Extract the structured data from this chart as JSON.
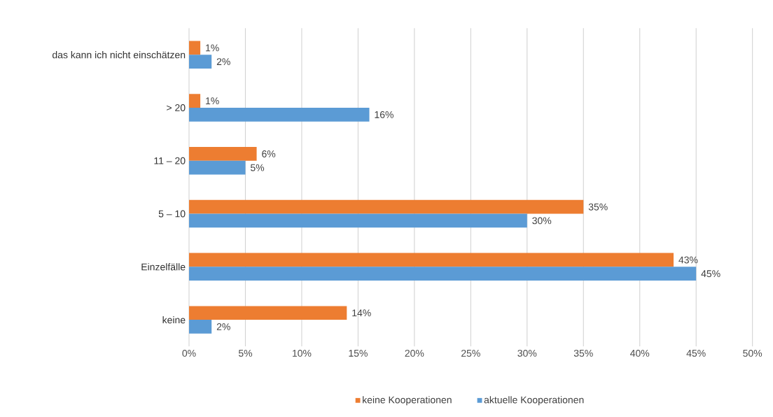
{
  "chart_data": {
    "type": "bar",
    "orientation": "horizontal",
    "categories": [
      "das kann ich nicht einschätzen",
      "> 20",
      "11 – 20",
      "5 – 10",
      "Einzelfälle",
      "keine"
    ],
    "series": [
      {
        "name": "keine Kooperationen",
        "color": "#ed7d31",
        "values": [
          1,
          1,
          6,
          35,
          43,
          14
        ],
        "value_labels": [
          "1%",
          "1%",
          "6%",
          "35%",
          "43%",
          "14%"
        ]
      },
      {
        "name": "aktuelle Kooperationen",
        "color": "#5b9bd5",
        "values": [
          2,
          16,
          5,
          30,
          45,
          2
        ],
        "value_labels": [
          "2%",
          "16%",
          "5%",
          "30%",
          "45%",
          "2%"
        ]
      }
    ],
    "xlim": [
      0,
      50
    ],
    "xticks": [
      {
        "value": 0,
        "label": "0%"
      },
      {
        "value": 5,
        "label": "5%"
      },
      {
        "value": 10,
        "label": "10%"
      },
      {
        "value": 15,
        "label": "15%"
      },
      {
        "value": 20,
        "label": "20%"
      },
      {
        "value": 25,
        "label": "25%"
      },
      {
        "value": 30,
        "label": "30%"
      },
      {
        "value": 35,
        "label": "35%"
      },
      {
        "value": 40,
        "label": "40%"
      },
      {
        "value": 45,
        "label": "45%"
      },
      {
        "value": 50,
        "label": "50%"
      }
    ],
    "grid": "x",
    "legend": "bottom"
  }
}
